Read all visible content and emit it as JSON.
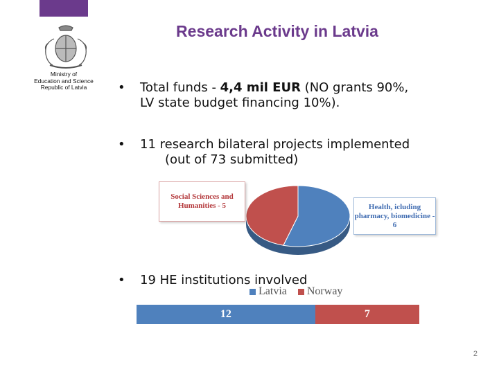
{
  "header": {
    "title": "Research Activity in Latvia"
  },
  "ministry": {
    "lines": [
      "Ministry of",
      "Education and Science",
      "Republic of Latvia"
    ]
  },
  "bullets": [
    {
      "marker": "•",
      "line1_pre": "Total funds - ",
      "line1_bold": "4,4 mil EUR",
      "line1_post": " (NO grants 90%,",
      "line2": "LV state budget financing 10%)."
    },
    {
      "marker": "•",
      "line1": "11 research bilateral projects implemented",
      "line2": "(out of 73 submitted)"
    },
    {
      "marker": "•",
      "line1": "19 HE institutions involved"
    }
  ],
  "colors": {
    "purple": "#6b3a8c",
    "blue": "#4f81bd",
    "red": "#c0504d"
  },
  "chart_data": [
    {
      "type": "pie",
      "slices": [
        {
          "label": "Social Sciences and Humanities - 5",
          "value": 5,
          "color": "#c0504d"
        },
        {
          "label": "Health, icluding pharmacy, biomedicine - 6",
          "value": 6,
          "color": "#4f81bd"
        }
      ]
    },
    {
      "type": "bar",
      "orientation": "horizontal-stacked",
      "series": [
        {
          "name": "Latvia",
          "values": [
            12
          ],
          "color": "#4f81bd"
        },
        {
          "name": "Norway",
          "values": [
            7
          ],
          "color": "#c0504d"
        }
      ],
      "legend": "top"
    }
  ],
  "page": {
    "number": "2"
  }
}
